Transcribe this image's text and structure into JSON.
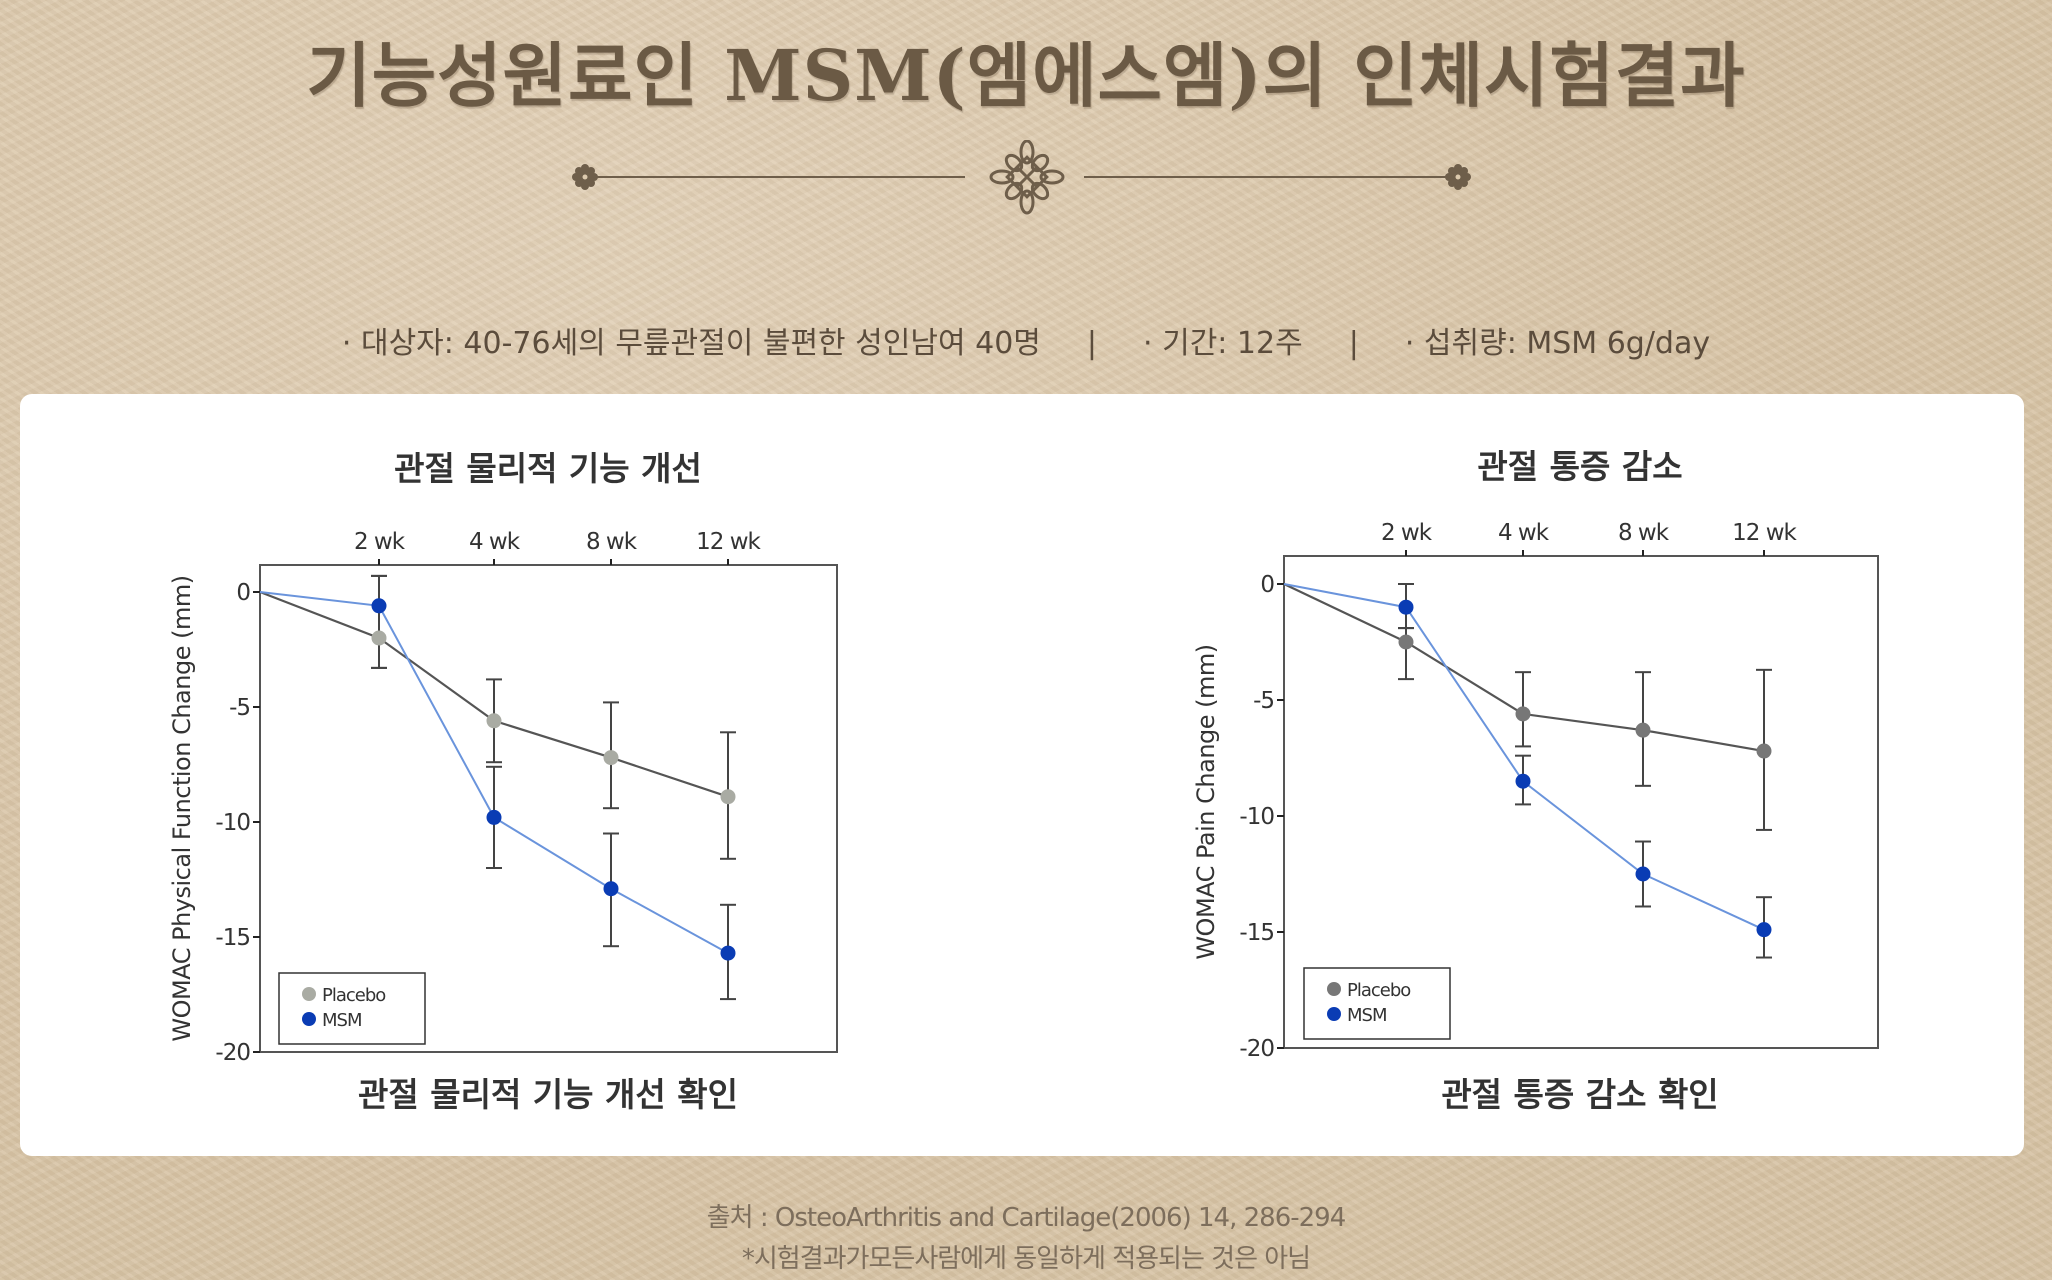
{
  "header": {
    "title": "기능성원료인 MSM(엠에스엠)의 인체시험결과"
  },
  "study_info": {
    "subject": "· 대상자: 40-76세의 무릎관절이 불편한 성인남여 40명",
    "separator": "|",
    "period": "· 기간: 12주",
    "dose": "· 섭취량: MSM 6g/day"
  },
  "colors": {
    "background": "#dcc9ad",
    "title": "#6b5a45",
    "ornament": "#6e5e4a",
    "msm": "#0a3cb4",
    "msm_line": "#6a94dc",
    "placebo_left": "#a9aba3",
    "placebo_right": "#777777",
    "placebo_line": "#555555",
    "axis": "#555555"
  },
  "chart_data": [
    {
      "type": "line",
      "title": "관절 물리적 기능 개선",
      "caption": "관절 물리적 기능 개선 확인",
      "xlabel": "",
      "ylabel": "WOMAC Physical Function Change (mm)",
      "categories": [
        "0",
        "2 wk",
        "4 wk",
        "8 wk",
        "12 wk"
      ],
      "x_tick_labels": [
        "2 wk",
        "4 wk",
        "8 wk",
        "12 wk"
      ],
      "x_axis_position": "top",
      "yticks": [
        0,
        -5,
        -10,
        -15,
        -20
      ],
      "ylim": [
        -20,
        1.2
      ],
      "grid": false,
      "legend_position": "lower-left",
      "series": [
        {
          "name": "Placebo",
          "values": [
            0,
            -2.0,
            -5.6,
            -7.2,
            -8.9
          ],
          "error_low": [
            null,
            -3.3,
            -7.4,
            -9.4,
            -11.6
          ],
          "error_high": [
            null,
            0.7,
            -3.8,
            -4.8,
            -6.1
          ]
        },
        {
          "name": "MSM",
          "values": [
            0,
            -0.6,
            -9.8,
            -12.9,
            -15.7
          ],
          "error_low": [
            null,
            -3.3,
            -12.0,
            -15.4,
            -17.7
          ],
          "error_high": [
            null,
            0.7,
            -7.6,
            -10.5,
            -13.6
          ]
        }
      ]
    },
    {
      "type": "line",
      "title": "관절 통증 감소",
      "caption": "관절 통증 감소 확인",
      "xlabel": "",
      "ylabel": "WOMAC Pain Change (mm)",
      "categories": [
        "0",
        "2 wk",
        "4 wk",
        "8 wk",
        "12 wk"
      ],
      "x_tick_labels": [
        "2 wk",
        "4 wk",
        "8 wk",
        "12 wk"
      ],
      "x_axis_position": "top",
      "yticks": [
        0,
        -5,
        -10,
        -15,
        -20
      ],
      "ylim": [
        -20,
        1.2
      ],
      "grid": false,
      "legend_position": "lower-left",
      "series": [
        {
          "name": "Placebo",
          "values": [
            0,
            -2.5,
            -5.6,
            -6.3,
            -7.2
          ],
          "error_low": [
            null,
            -4.1,
            -7.0,
            -8.7,
            -10.6
          ],
          "error_high": [
            null,
            -1.9,
            -3.8,
            -3.8,
            -3.7
          ]
        },
        {
          "name": "MSM",
          "values": [
            0,
            -1.0,
            -8.5,
            -12.5,
            -14.9
          ],
          "error_low": [
            null,
            -1.9,
            -9.5,
            -13.9,
            -16.1
          ],
          "error_high": [
            null,
            0.0,
            -7.4,
            -11.1,
            -13.5
          ]
        }
      ]
    }
  ],
  "footer": {
    "source": "출처 : OsteoArthritis and Cartilage(2006) 14, 286-294",
    "disclaimer": "*시험결과가모든사람에게 동일하게 적용되는 것은 아님"
  }
}
